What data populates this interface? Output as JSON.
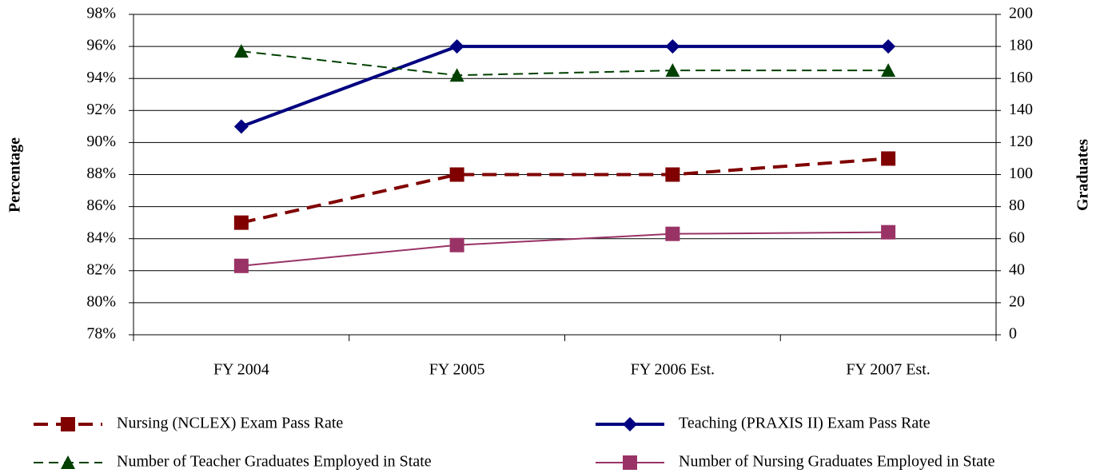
{
  "chart_data": {
    "type": "line",
    "categories": [
      "FY 2004",
      "FY 2005",
      "FY 2006 Est.",
      "FY 2007 Est."
    ],
    "ylabel": "Percentage",
    "y2label": "Graduates",
    "ylim": [
      78,
      98
    ],
    "yticks": [
      {
        "value": 78,
        "label": "78%"
      },
      {
        "value": 80,
        "label": "80%"
      },
      {
        "value": 82,
        "label": "82%"
      },
      {
        "value": 84,
        "label": "84%"
      },
      {
        "value": 86,
        "label": "86%"
      },
      {
        "value": 88,
        "label": "88%"
      },
      {
        "value": 90,
        "label": "90%"
      },
      {
        "value": 92,
        "label": "92%"
      },
      {
        "value": 94,
        "label": "94%"
      },
      {
        "value": 96,
        "label": "96%"
      },
      {
        "value": 98,
        "label": "98%"
      }
    ],
    "y2lim": [
      0,
      200
    ],
    "y2ticks": [
      0,
      20,
      40,
      60,
      80,
      100,
      120,
      140,
      160,
      180,
      200
    ],
    "grid": true,
    "legend": "bottom",
    "series": [
      {
        "name": "Nursing (NCLEX) Exam Pass Rate",
        "color": "#800000",
        "values": [
          85,
          88,
          88,
          89
        ],
        "marker": "square",
        "dash": "dashed",
        "width": 4
      },
      {
        "name": "Teaching (PRAXIS II) Exam Pass Rate",
        "color": "#000080",
        "values": [
          91,
          96,
          96,
          96
        ],
        "marker": "diamond",
        "dash": "solid",
        "width": 4
      },
      {
        "name": "Number of Teacher Graduates Employed in State",
        "color": "#004000",
        "values": [
          177,
          162,
          165,
          165
        ],
        "marker": "triangle",
        "dash": "dashed",
        "width": 2,
        "axis": "y2"
      },
      {
        "name": "Number of Nursing Graduates Employed in State",
        "color": "#993366",
        "values": [
          43,
          56,
          63,
          64
        ],
        "marker": "square",
        "dash": "solid",
        "width": 2,
        "axis": "y2"
      }
    ]
  }
}
